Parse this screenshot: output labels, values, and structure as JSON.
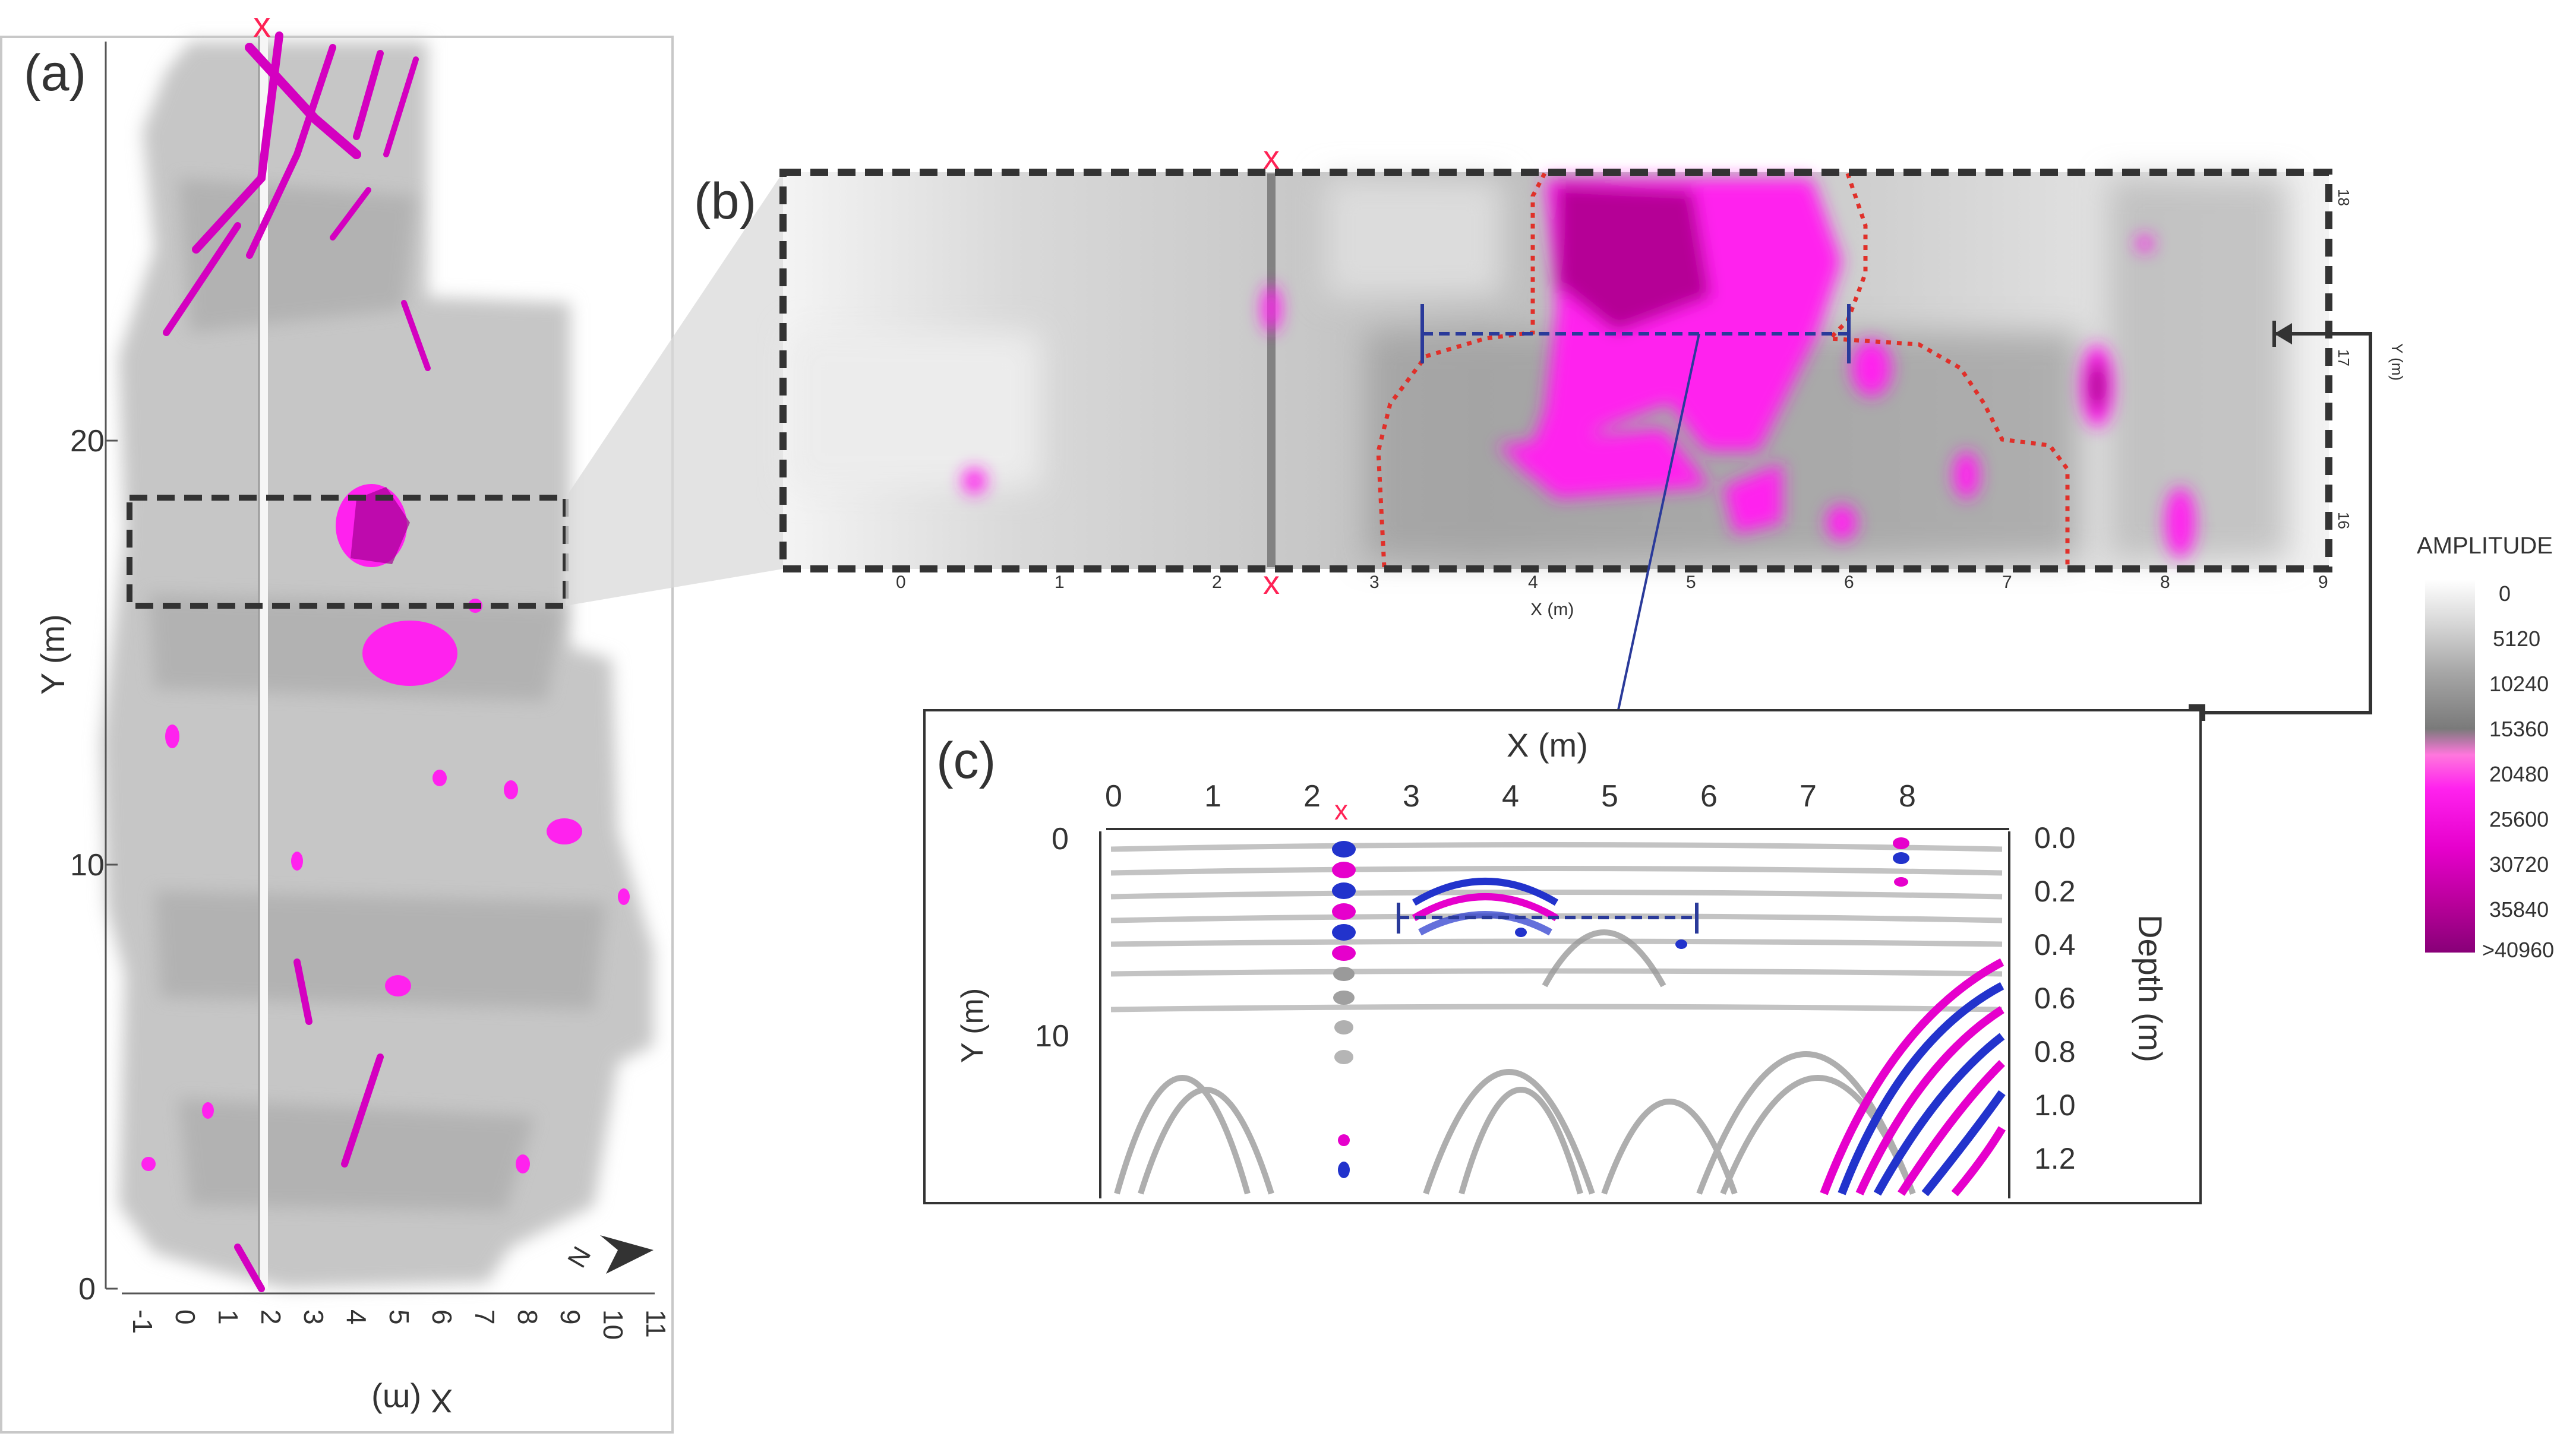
{
  "panel_a": {
    "label": "(a)",
    "y_label": "Y (m)",
    "x_label": "X (m)",
    "y_ticks": [
      "0",
      "10",
      "20"
    ],
    "x_ticks": [
      "-1",
      "0",
      "1",
      "2",
      "3",
      "4",
      "5",
      "6",
      "7",
      "8",
      "9",
      "10",
      "11"
    ],
    "marker": "x",
    "north_label": "N"
  },
  "panel_b": {
    "label": "(b)",
    "x_label": "X (m)",
    "x_ticks": [
      "0",
      "1",
      "2",
      "3",
      "4",
      "5",
      "6",
      "7",
      "8",
      "9"
    ],
    "y_label": "Y (m)",
    "y_ticks": [
      "16",
      "17",
      "18"
    ],
    "marker_top": "x",
    "marker_bottom": "x"
  },
  "panel_c": {
    "label": "(c)",
    "x_label": "X (m)",
    "x_ticks": [
      "0",
      "1",
      "2",
      "3",
      "4",
      "5",
      "6",
      "7",
      "8"
    ],
    "y_label": "Y (m)",
    "y_ticks": [
      "0",
      "10"
    ],
    "depth_label": "Depth (m)",
    "depth_ticks": [
      "0.0",
      "0.2",
      "0.4",
      "0.6",
      "0.8",
      "1.0",
      "1.2"
    ],
    "marker": "x"
  },
  "legend": {
    "title": "AMPLITUDE",
    "labels": [
      "0",
      "5120",
      "10240",
      "15360",
      "20480",
      "25600",
      "30720",
      "35840",
      ">40960"
    ],
    "colors": [
      "#ffffff",
      "#d6d6d6",
      "#a6a6a6",
      "#7a7a7a",
      "#ff55dd",
      "#ff00ee",
      "#e800cc",
      "#b8009a",
      "#8a0078"
    ]
  },
  "colors": {
    "magenta": "#ff22ee",
    "marker_red": "#ff2255",
    "dashed_blue": "#2a3a9a",
    "frame_dark": "#333333",
    "boundary_red": "#e0302a"
  }
}
